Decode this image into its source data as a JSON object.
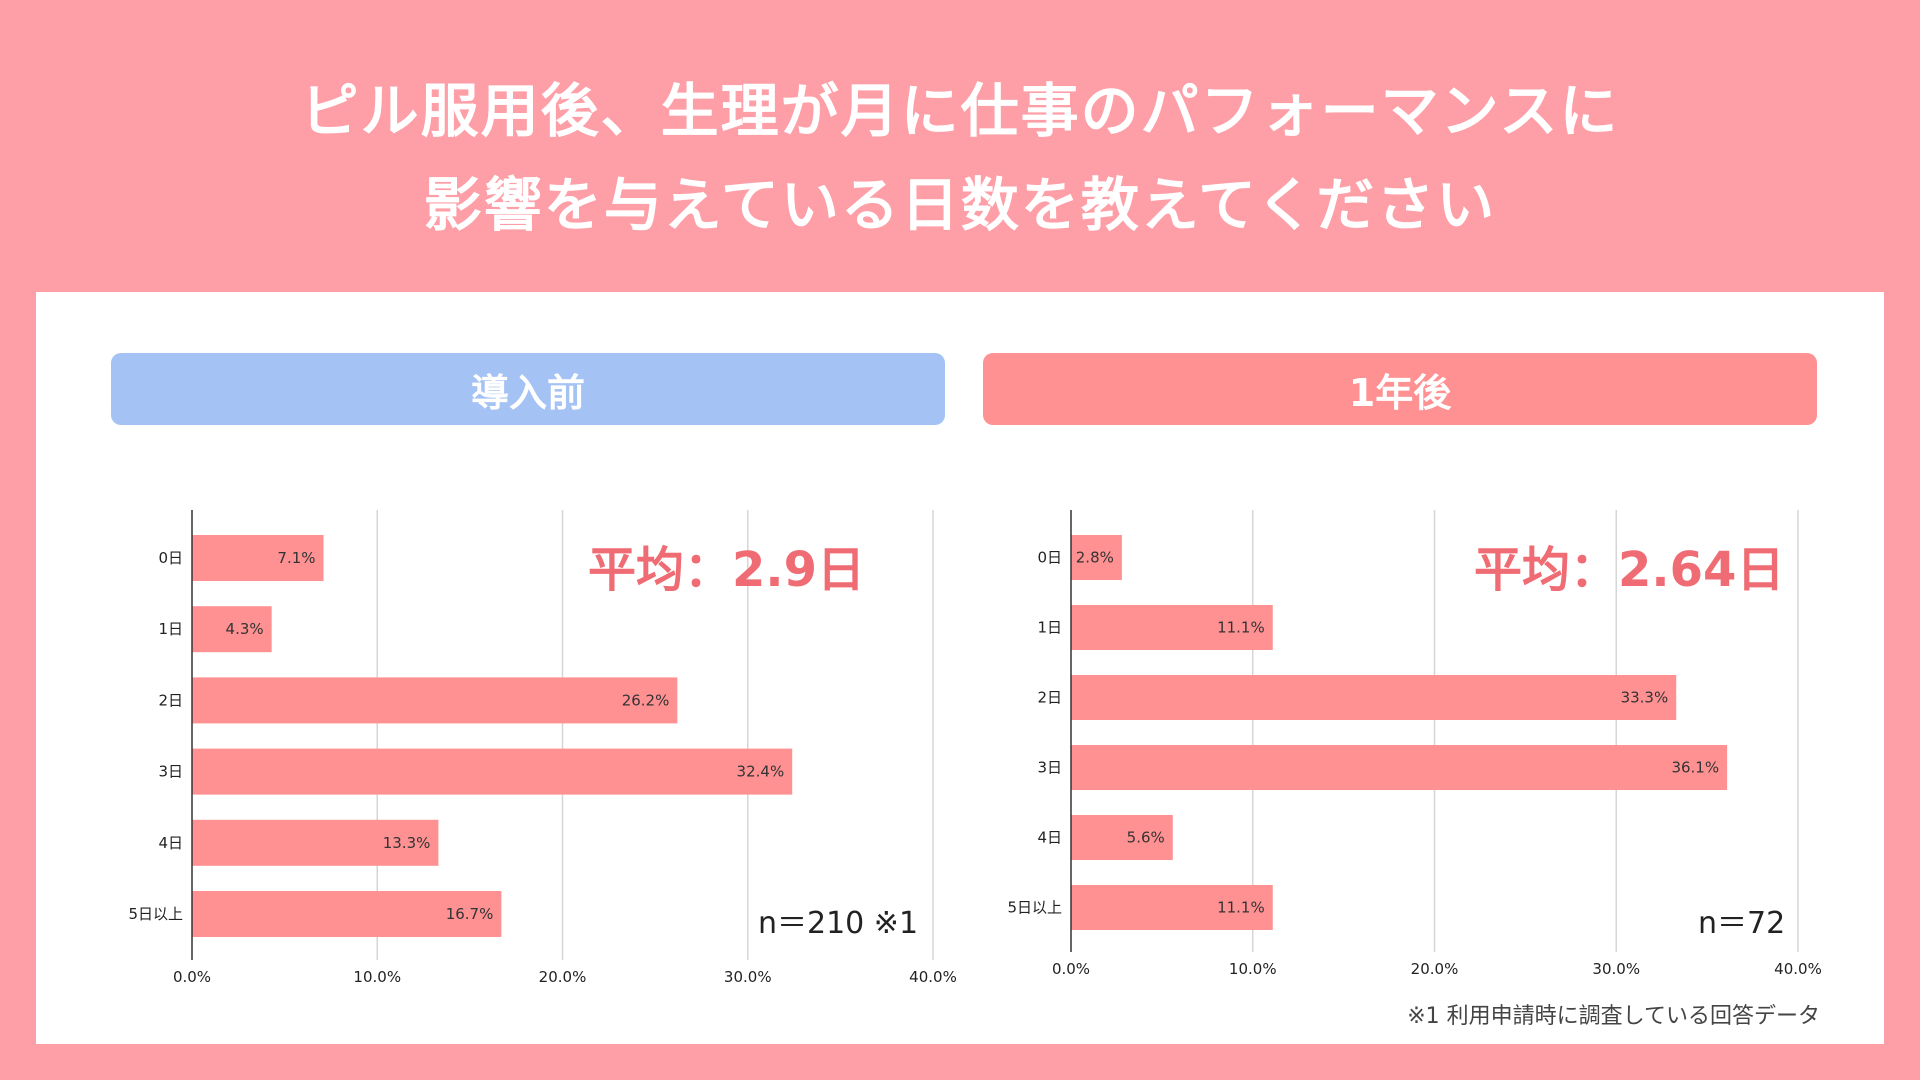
{
  "title": {
    "line1": "ピル服用後、生理が月に仕事のパフォーマンスに",
    "line2": "影響を与えている日数を教えてください"
  },
  "colors": {
    "background": "#FE9EA6",
    "bar": "#FF9192",
    "pill_before": "#A4C2F4",
    "pill_after": "#FF9192",
    "average_text": "#F06C74"
  },
  "footnote": "※1 利用申請時に調査している回答データ",
  "chart_data": [
    {
      "type": "bar",
      "orientation": "horizontal",
      "header": "導入前",
      "average_label": "平均：",
      "average_value": "2.9日",
      "sample_note": "n＝210 ※1",
      "categories": [
        "0日",
        "1日",
        "2日",
        "3日",
        "4日",
        "5日以上"
      ],
      "values": [
        7.1,
        4.3,
        26.2,
        32.4,
        13.3,
        16.7
      ],
      "value_labels": [
        "7.1%",
        "4.3%",
        "26.2%",
        "32.4%",
        "13.3%",
        "16.7%"
      ],
      "xlim": [
        0,
        40
      ],
      "x_ticks": [
        "0.0%",
        "10.0%",
        "20.0%",
        "30.0%",
        "40.0%"
      ],
      "grid": true
    },
    {
      "type": "bar",
      "orientation": "horizontal",
      "header": "1年後",
      "average_label": "平均：",
      "average_value": "2.64日",
      "sample_note": "n＝72",
      "categories": [
        "0日",
        "1日",
        "2日",
        "3日",
        "4日",
        "5日以上"
      ],
      "values": [
        2.8,
        11.1,
        33.3,
        36.1,
        5.6,
        11.1
      ],
      "value_labels": [
        "2.8%",
        "11.1%",
        "33.3%",
        "36.1%",
        "5.6%",
        "11.1%"
      ],
      "xlim": [
        0,
        40
      ],
      "x_ticks": [
        "0.0%",
        "10.0%",
        "20.0%",
        "30.0%",
        "40.0%"
      ],
      "grid": true
    }
  ]
}
